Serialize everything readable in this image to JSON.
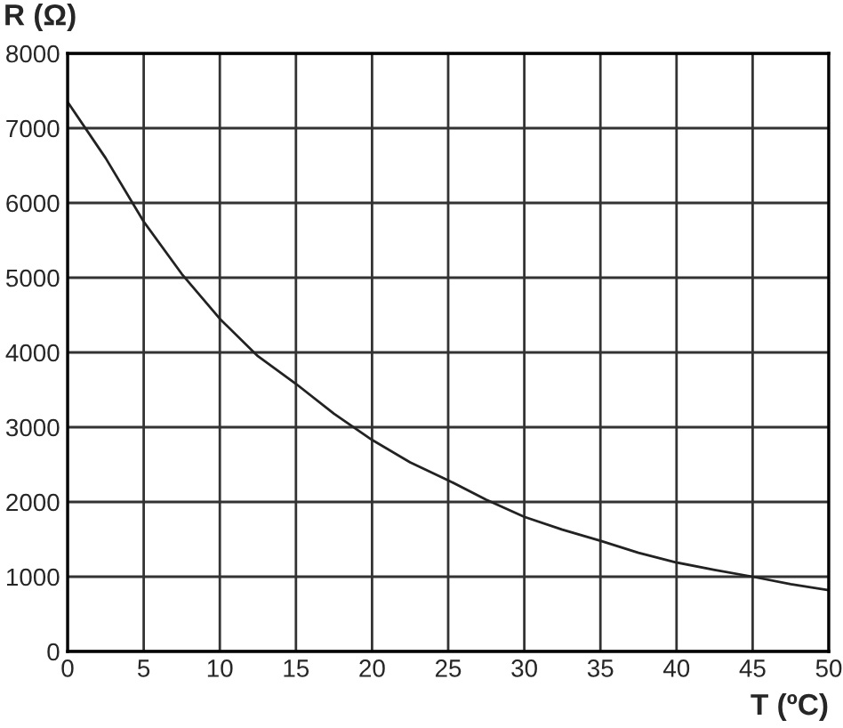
{
  "chart_data": {
    "type": "line",
    "xlabel": "T (ºC)",
    "ylabel": "R (Ω)",
    "x": [
      0,
      2.5,
      5,
      7.5,
      10,
      12.5,
      15,
      17.5,
      20,
      22.5,
      25,
      27.5,
      30,
      32.5,
      35,
      37.5,
      40,
      42.5,
      45,
      47.5,
      50
    ],
    "series": [
      {
        "color": "#222222",
        "values": [
          7350,
          6600,
          5750,
          5050,
          4450,
          3950,
          3580,
          3180,
          2830,
          2530,
          2290,
          2030,
          1800,
          1630,
          1480,
          1320,
          1190,
          1090,
          1000,
          900,
          820
        ]
      }
    ],
    "xlim": [
      0,
      50
    ],
    "ylim": [
      0,
      8000
    ],
    "xticks": [
      0,
      5,
      10,
      15,
      20,
      25,
      30,
      35,
      40,
      45,
      50
    ],
    "yticks": [
      0,
      1000,
      2000,
      3000,
      4000,
      5000,
      6000,
      7000,
      8000
    ],
    "grid": true,
    "marker": "none",
    "line_style": "solid",
    "legend": false
  }
}
